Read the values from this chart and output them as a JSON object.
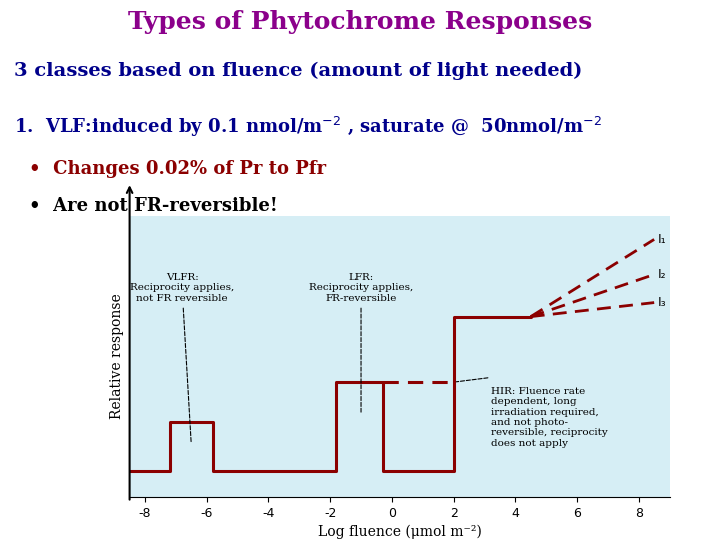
{
  "title": "Types of Phytochrome Responses",
  "title_color": "#8B008B",
  "line1": "3 classes based on fluence (amount of light needed)",
  "line1_color": "#00008B",
  "line2_main": "1.  VLF:induced by 0.1 nmol/m",
  "line2_sup1": "-2",
  "line2_mid": " , saturate @  50nmol/m",
  "line2_sup2": "-2",
  "line2_color": "#00008B",
  "bullet1": "Changes 0.02% of Pr to Pfr",
  "bullet1_color": "#8B0000",
  "bullet2": "Are not FR-reversible!",
  "bullet2_color": "#000000",
  "bg_color": "#FFFFFF",
  "plot_bg_color": "#D6EEF5",
  "curve_color": "#8B0000",
  "xlabel": "Log fluence (μmol m⁻²)",
  "ylabel": "Relative response",
  "x_ticks": [
    -8,
    -6,
    -4,
    -2,
    0,
    2,
    4,
    6,
    8
  ],
  "x_tick_labels": [
    "-8",
    "-6",
    "-4",
    "-2",
    "0",
    "2",
    "4",
    "6",
    "8"
  ],
  "annot_vlfr": "VLFR:\nReciprocity applies,\nnot FR reversible",
  "annot_lfr": "LFR:\nReciprocity applies,\nFR-reversible",
  "annot_hir": "HIR: Fluence rate\ndependent, long\nirradiation required,\nand not photo-\nreversible, reciprocity\ndoes not apply",
  "label_I1": "I₁",
  "label_I2": "I₂",
  "label_I3": "I₃"
}
